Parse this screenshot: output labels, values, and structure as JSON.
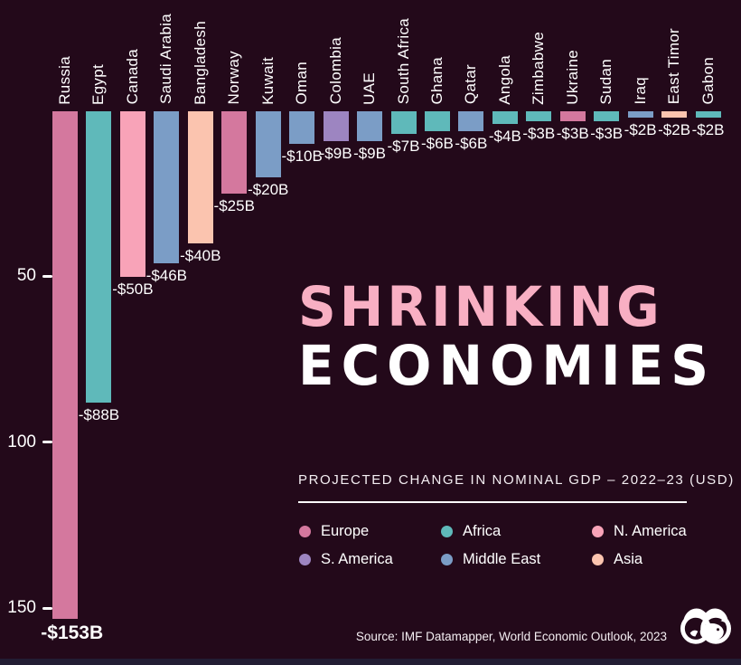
{
  "title": {
    "line1": "SHRINKING",
    "line2": "ECONOMIES"
  },
  "subtitle": "PROJECTED CHANGE IN NOMINAL GDP – 2022–23 (USD)",
  "source": "Source: IMF Datamapper, World Economic Outlook, 2023",
  "logo_name": "visual-capitalist-logo",
  "colors": {
    "background": "#23091a",
    "title_pink": "#f8afc3",
    "title_white": "#ffffff",
    "text": "#ffffff",
    "bottom_strip": "#221d33"
  },
  "legend": [
    {
      "label": "Europe",
      "color": "#d4789e"
    },
    {
      "label": "Africa",
      "color": "#5fb9ba"
    },
    {
      "label": "N. America",
      "color": "#f8a3b8"
    },
    {
      "label": "S. America",
      "color": "#9d85c1"
    },
    {
      "label": "Middle East",
      "color": "#7b9dc6"
    },
    {
      "label": "Asia",
      "color": "#fbc4af"
    }
  ],
  "chart_data": {
    "type": "bar",
    "title": "SHRINKING ECONOMIES",
    "subtitle": "PROJECTED CHANGE IN NOMINAL GDP – 2022–23 (USD)",
    "unit": "billions USD",
    "orientation": "vertical, bars extend downward (negative values)",
    "axis_ticks": [
      "50",
      "100",
      "150"
    ],
    "ylim": [
      0,
      -160
    ],
    "legend_position": "middle-right",
    "grid": false,
    "points": [
      {
        "country": "Russia",
        "region": "Europe",
        "value": -153,
        "label": "-$153B"
      },
      {
        "country": "Egypt",
        "region": "Africa",
        "value": -88,
        "label": "-$88B"
      },
      {
        "country": "Canada",
        "region": "N. America",
        "value": -50,
        "label": "-$50B"
      },
      {
        "country": "Saudi Arabia",
        "region": "Middle East",
        "value": -46,
        "label": "-$46B"
      },
      {
        "country": "Bangladesh",
        "region": "Asia",
        "value": -40,
        "label": "-$40B"
      },
      {
        "country": "Norway",
        "region": "Europe",
        "value": -25,
        "label": "-$25B"
      },
      {
        "country": "Kuwait",
        "region": "Middle East",
        "value": -20,
        "label": "-$20B"
      },
      {
        "country": "Oman",
        "region": "Middle East",
        "value": -10,
        "label": "-$10B"
      },
      {
        "country": "Colombia",
        "region": "S. America",
        "value": -9,
        "label": "-$9B"
      },
      {
        "country": "UAE",
        "region": "Middle East",
        "value": -9,
        "label": "-$9B"
      },
      {
        "country": "South Africa",
        "region": "Africa",
        "value": -7,
        "label": "-$7B"
      },
      {
        "country": "Ghana",
        "region": "Africa",
        "value": -6,
        "label": "-$6B"
      },
      {
        "country": "Qatar",
        "region": "Middle East",
        "value": -6,
        "label": "-$6B"
      },
      {
        "country": "Angola",
        "region": "Africa",
        "value": -4,
        "label": "-$4B"
      },
      {
        "country": "Zimbabwe",
        "region": "Africa",
        "value": -3,
        "label": "-$3B"
      },
      {
        "country": "Ukraine",
        "region": "Europe",
        "value": -3,
        "label": "-$3B"
      },
      {
        "country": "Sudan",
        "region": "Africa",
        "value": -3,
        "label": "-$3B"
      },
      {
        "country": "Iraq",
        "region": "Middle East",
        "value": -2,
        "label": "-$2B"
      },
      {
        "country": "East Timor",
        "region": "Asia",
        "value": -2,
        "label": "-$2B"
      },
      {
        "country": "Gabon",
        "region": "Africa",
        "value": -2,
        "label": "-$2B"
      }
    ]
  }
}
